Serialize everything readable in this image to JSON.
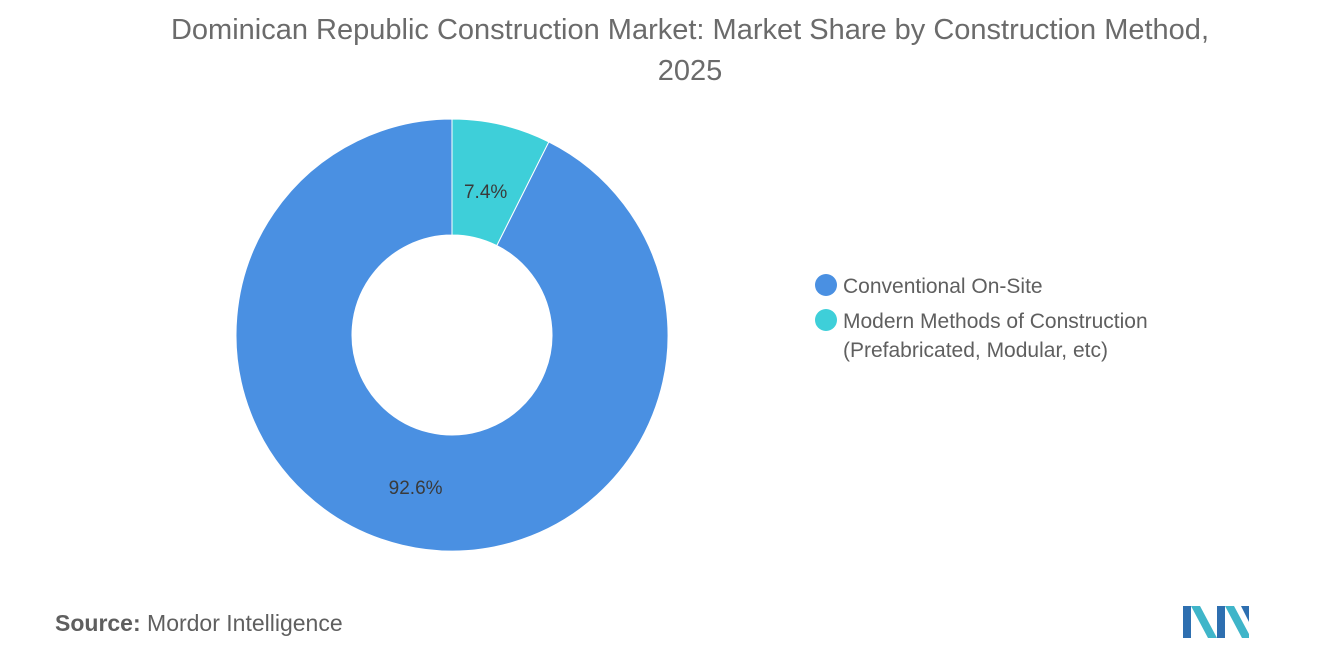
{
  "title": "Dominican Republic Construction Market: Market Share by Construction Method, 2025",
  "source": {
    "label": "Source:",
    "value": "Mordor Intelligence"
  },
  "logo": {
    "icon": "mordor-intelligence-logo"
  },
  "chart_data": {
    "type": "pie",
    "variant": "donut",
    "title": "Dominican Republic Construction Market: Market Share by Construction Method, 2025",
    "legend_position": "right",
    "slices": [
      {
        "name": "Conventional On-Site",
        "value": 92.6,
        "label": "92.6%",
        "color": "#4a90e2"
      },
      {
        "name": "Modern Methods of Construction (Prefabricated, Modular, etc)",
        "value": 7.4,
        "label": "7.4%",
        "color": "#3ecfd9"
      }
    ]
  }
}
